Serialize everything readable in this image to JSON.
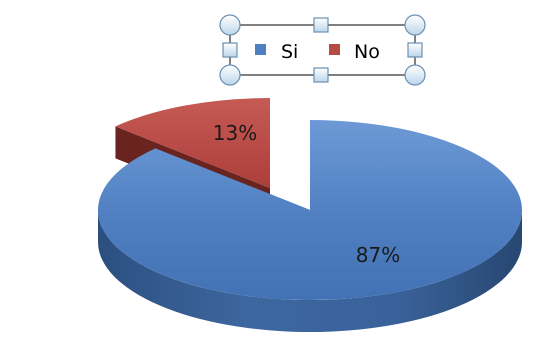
{
  "chart_data": {
    "type": "pie",
    "style": "3d-exploded",
    "categories": [
      "Si",
      "No"
    ],
    "values": [
      87,
      13
    ],
    "data_labels": [
      "87%",
      "13%"
    ],
    "colors": {
      "Si": "#4f7fc1",
      "No": "#b84a45"
    },
    "legend": {
      "position": "top",
      "selected": true,
      "entries": [
        "Si",
        "No"
      ]
    },
    "title": ""
  }
}
